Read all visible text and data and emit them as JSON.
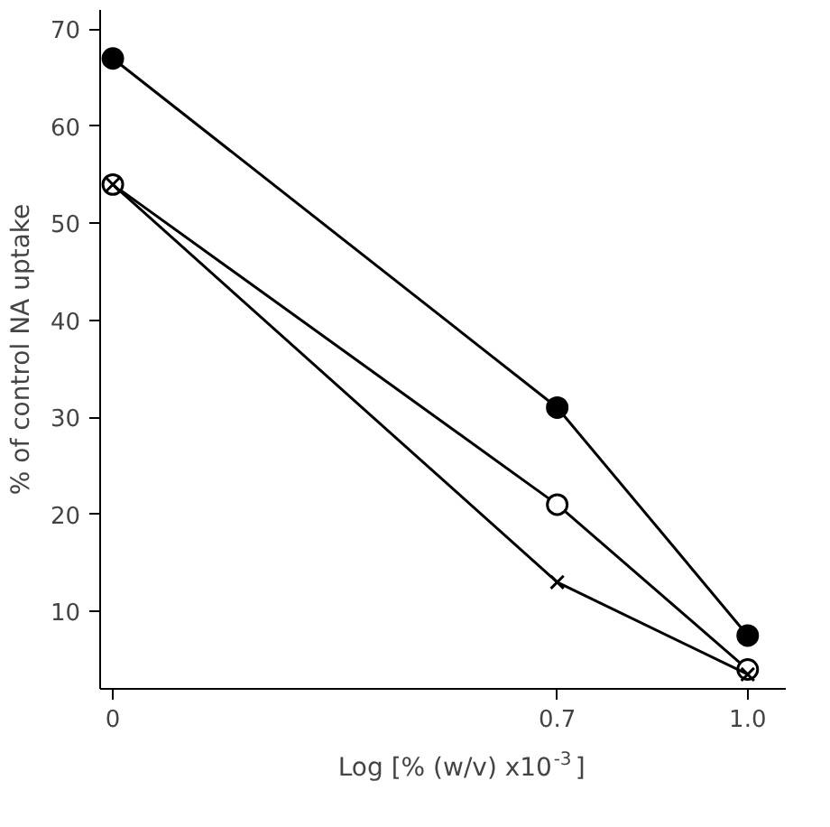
{
  "chart_data": {
    "type": "line",
    "xlabel": "Log [% (w/v) x10$^{-3}$]",
    "ylabel": "% of control NA uptake",
    "x": [
      0,
      0.7,
      1.0
    ],
    "xlim": [
      -0.02,
      1.06
    ],
    "ylim": [
      2,
      72
    ],
    "xticks": [
      0,
      0.7,
      {
        "value": 1.0,
        "label": "1.0"
      }
    ],
    "yticks": [
      10,
      20,
      30,
      40,
      50,
      60,
      70
    ],
    "grid": false,
    "line_style": "solid",
    "series": [
      {
        "color": "#000000",
        "marker": "circle",
        "values": [
          67,
          31,
          7.5
        ]
      },
      {
        "color": "#000000",
        "marker": "circle",
        "values": [
          54,
          21,
          4
        ]
      },
      {
        "color": "#000000",
        "marker": "cross",
        "values": [
          54,
          13,
          3.5
        ]
      }
    ]
  }
}
